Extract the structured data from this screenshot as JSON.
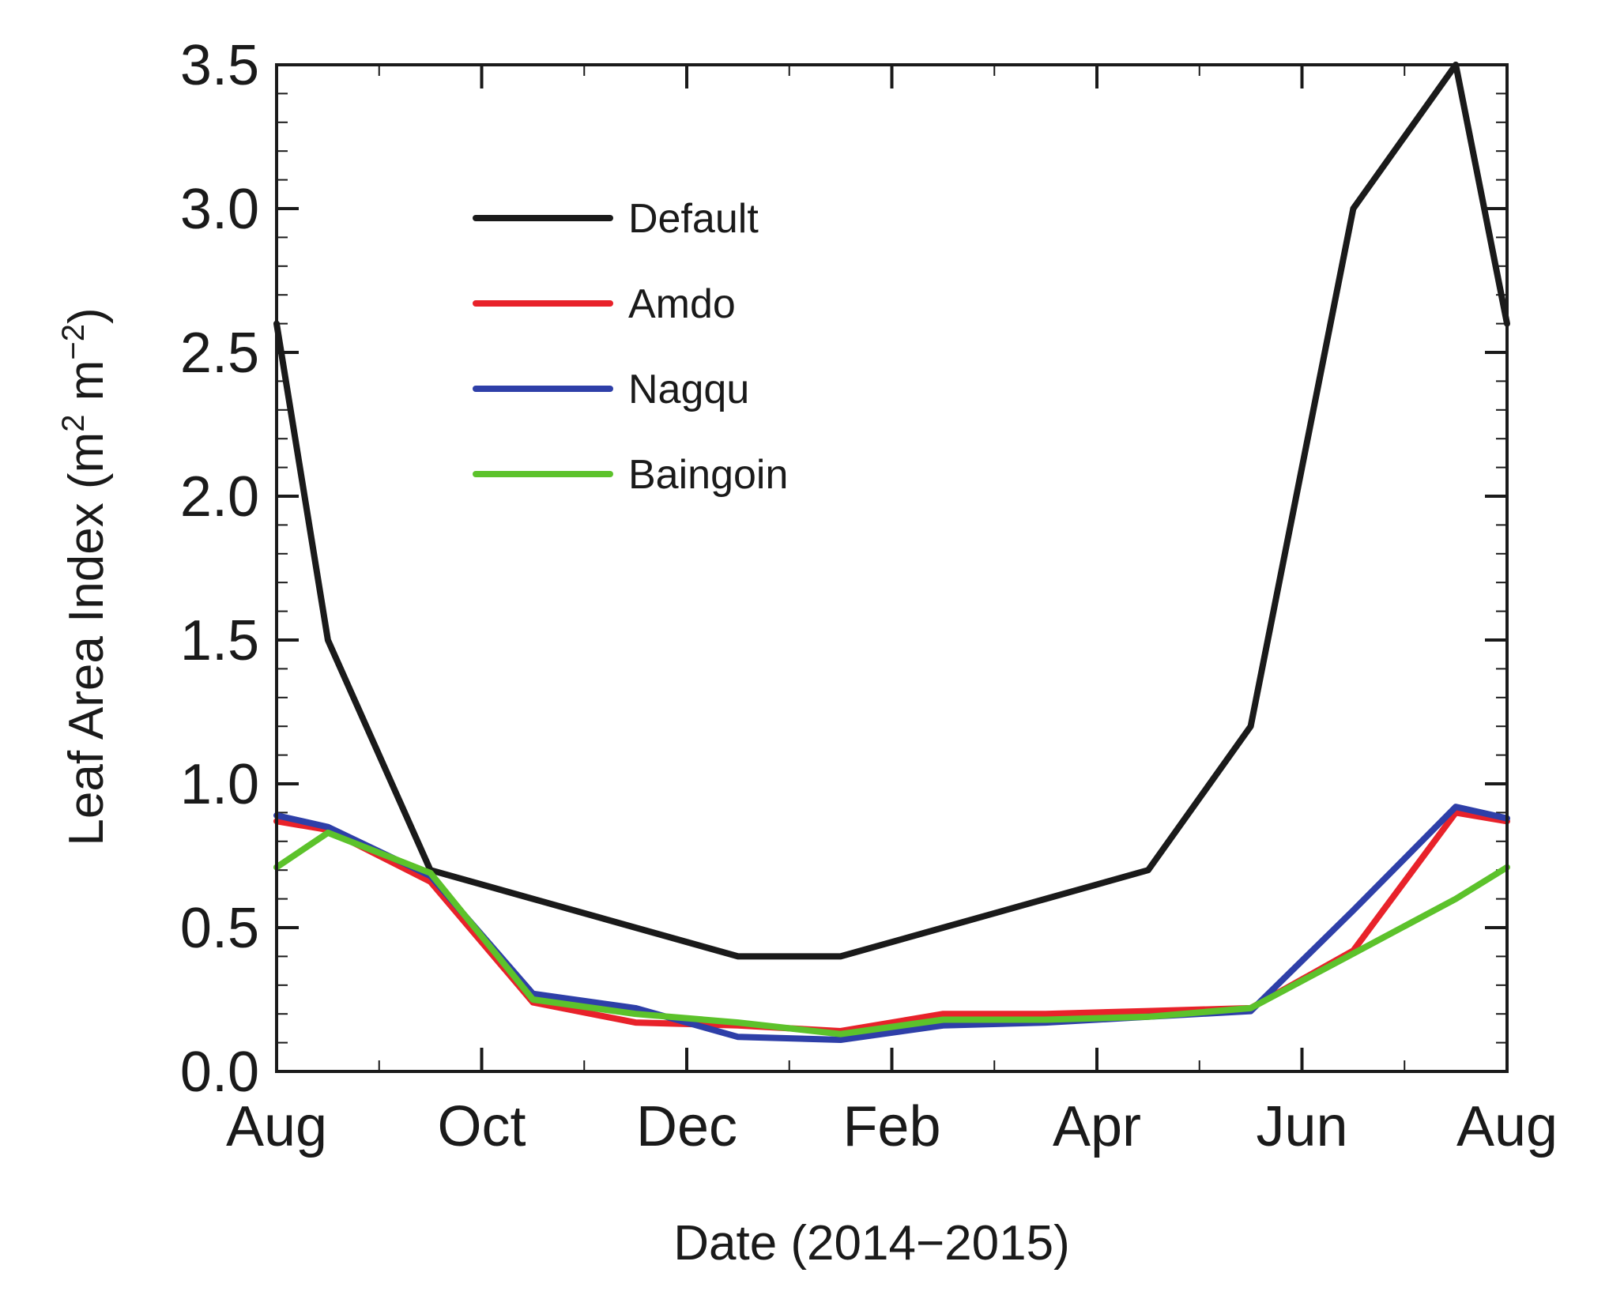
{
  "chart_data": {
    "type": "line",
    "title": "",
    "xlabel": "Date (2014−2015)",
    "ylabel": "Leaf Area Index (m",
    "ylabel_sup1": "2",
    "ylabel_mid": " m",
    "ylabel_sup2": "−2",
    "ylabel_end": ")",
    "ylim": [
      0,
      3.5
    ],
    "xlim": [
      0,
      12
    ],
    "y_ticks": [
      0.0,
      0.5,
      1.0,
      1.5,
      2.0,
      2.5,
      3.0,
      3.5
    ],
    "y_tick_labels": [
      "0.0",
      "0.5",
      "1.0",
      "1.5",
      "2.0",
      "2.5",
      "3.0",
      "3.5"
    ],
    "x_ticks": [
      0,
      2,
      4,
      6,
      8,
      10,
      12
    ],
    "x_tick_labels": [
      "Aug",
      "Oct",
      "Dec",
      "Feb",
      "Apr",
      "Jun",
      "Aug"
    ],
    "x_month_offsets": [
      0,
      0.5,
      1.5,
      2.5,
      3.5,
      4.5,
      5.5,
      6.5,
      7.5,
      8.5,
      9.5,
      10.5,
      11.5,
      12
    ],
    "legend_position": "upper-left",
    "series": [
      {
        "name": "Default",
        "color": "#1a1a1a",
        "values": [
          2.6,
          1.5,
          0.7,
          0.6,
          0.5,
          0.4,
          0.4,
          0.5,
          0.6,
          0.7,
          1.2,
          3.0,
          3.5,
          2.6
        ]
      },
      {
        "name": "Amdo",
        "color": "#e8222a",
        "values": [
          0.87,
          0.84,
          0.66,
          0.24,
          0.17,
          0.16,
          0.14,
          0.2,
          0.2,
          0.21,
          0.22,
          0.42,
          0.9,
          0.87
        ]
      },
      {
        "name": "Nagqu",
        "color": "#2e3fa8",
        "values": [
          0.89,
          0.85,
          0.68,
          0.27,
          0.22,
          0.12,
          0.11,
          0.16,
          0.17,
          0.19,
          0.21,
          0.56,
          0.92,
          0.88
        ]
      },
      {
        "name": "Baingoin",
        "color": "#5cc22b",
        "values": [
          0.71,
          0.83,
          0.69,
          0.25,
          0.2,
          0.17,
          0.13,
          0.18,
          0.18,
          0.19,
          0.22,
          0.41,
          0.6,
          0.71
        ]
      }
    ]
  }
}
